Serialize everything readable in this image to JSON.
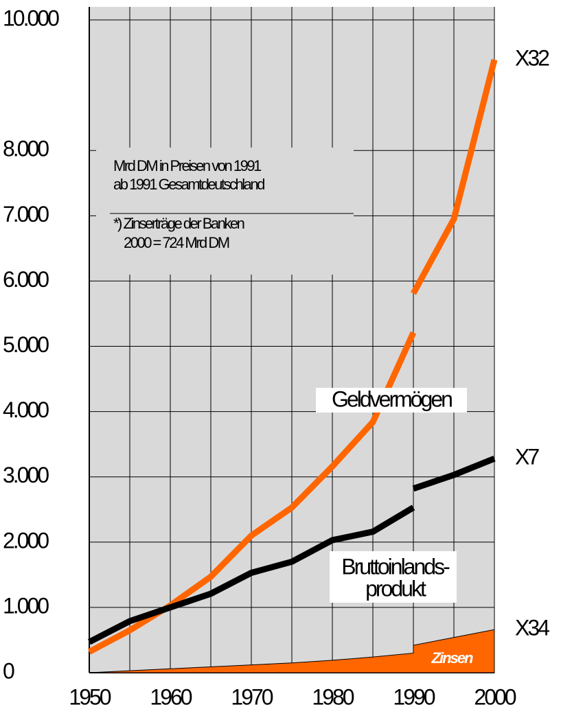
{
  "chart_data": {
    "type": "line",
    "xlim": [
      1950,
      2000
    ],
    "xticks": [
      1950,
      1960,
      1970,
      1980,
      1990,
      2000
    ],
    "xgrid": [
      1950,
      1955,
      1960,
      1965,
      1970,
      1975,
      1980,
      1985,
      1990,
      1995,
      2000
    ],
    "ylim": [
      0,
      10200
    ],
    "yticks": [
      0,
      {
        "value": 1000,
        "label": "1.000"
      },
      {
        "value": 2000,
        "label": "2.000"
      },
      {
        "value": 3000,
        "label": "3.000"
      },
      {
        "value": 4000,
        "label": "4.000"
      },
      {
        "value": 5000,
        "label": "5.000"
      },
      {
        "value": 6000,
        "label": "6.000"
      },
      {
        "value": 7000,
        "label": "7.000"
      },
      {
        "value": 8000,
        "label": "8.000"
      },
      {
        "value": 10000,
        "label": "10.000"
      }
    ],
    "grid": true,
    "note_lines": [
      "Mrd DM in Preisen von 1991",
      "ab 1991 Gesamtdeutschland",
      "*) Zinserträge der Banken",
      "2000 = 724 Mrd DM"
    ],
    "series": [
      {
        "name": "Zinsen",
        "color": "#ff6600",
        "kind": "area",
        "x": [
          1950,
          1960,
          1970,
          1975,
          1980,
          1985,
          1990,
          1990,
          2000
        ],
        "values": [
          0,
          60,
          120,
          150,
          190,
          240,
          300,
          420,
          660
        ],
        "end_label": "X34"
      },
      {
        "name": "Geldvermögen",
        "color": "#ff6600",
        "kind": "line",
        "x": [
          1950,
          1955,
          1960,
          1965,
          1970,
          1975,
          1980,
          1985,
          1990,
          null,
          1990,
          1995,
          2000
        ],
        "values": [
          320,
          650,
          1030,
          1470,
          2100,
          2530,
          3160,
          3840,
          5210,
          null,
          5810,
          6950,
          9390
        ],
        "end_label": "X32"
      },
      {
        "name_lines": [
          "Bruttoinlands-",
          "produkt"
        ],
        "color": "#000000",
        "kind": "line",
        "x": [
          1950,
          1955,
          1960,
          1965,
          1970,
          1975,
          1980,
          1985,
          1990,
          null,
          1990,
          1995,
          2000
        ],
        "values": [
          470,
          790,
          1000,
          1210,
          1530,
          1700,
          2030,
          2160,
          2530,
          null,
          2820,
          3030,
          3280
        ],
        "end_label": "X7"
      }
    ]
  }
}
